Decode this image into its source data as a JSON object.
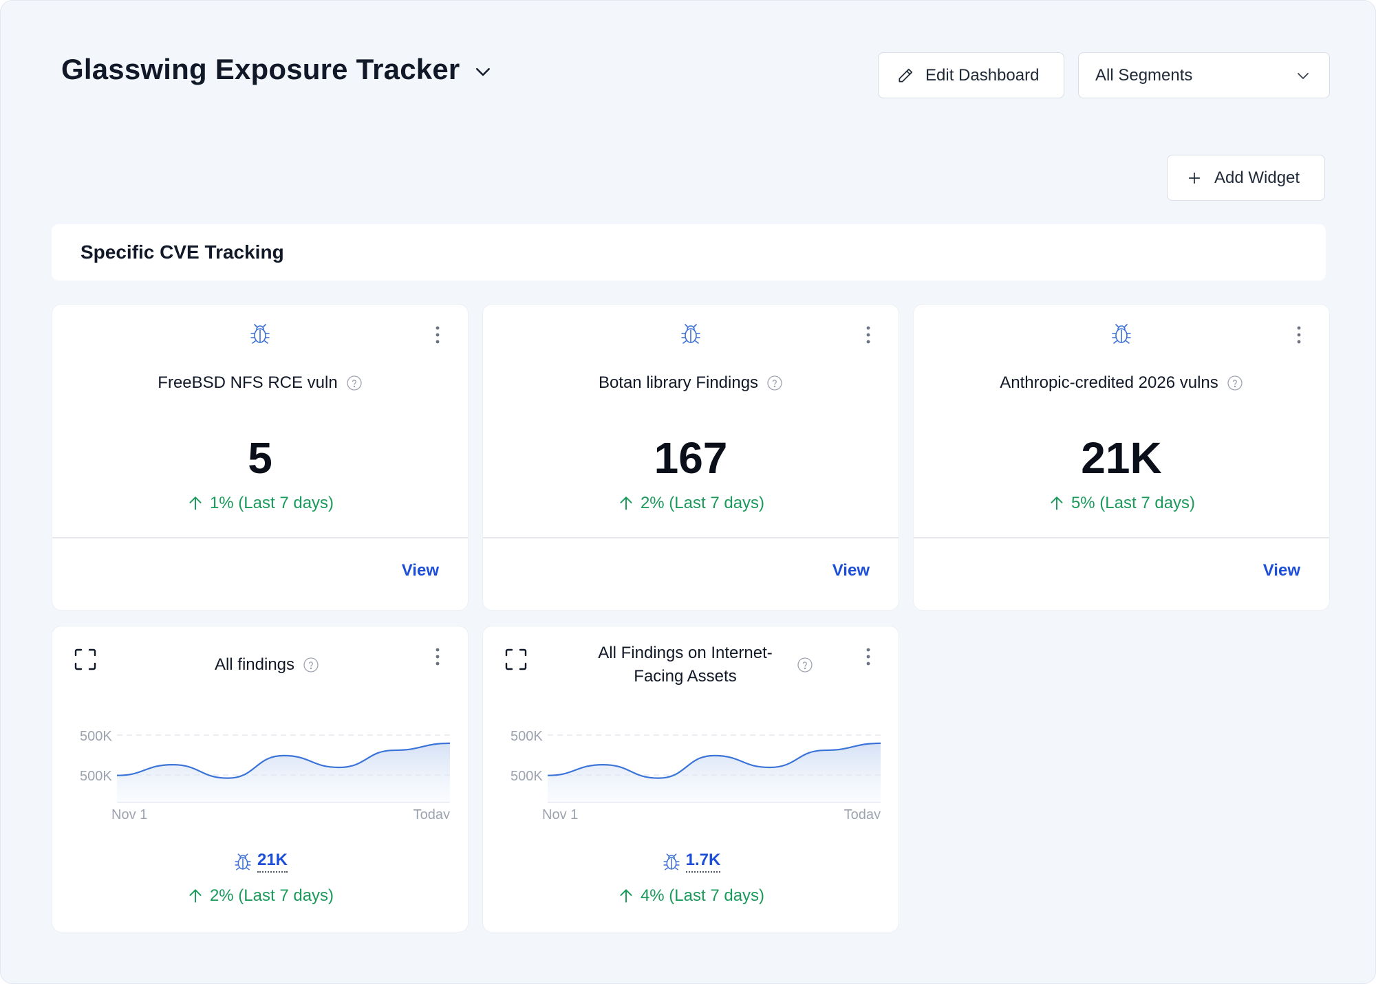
{
  "header": {
    "title": "Glasswing Exposure Tracker",
    "edit_label": "Edit Dashboard",
    "segment_label": "All Segments",
    "add_widget_label": "Add Widget"
  },
  "section": {
    "title": "Specific CVE Tracking"
  },
  "kpis": [
    {
      "label": "FreeBSD NFS RCE vuln",
      "value": "5",
      "trend": "1% (Last 7 days)",
      "view": "View"
    },
    {
      "label": "Botan library Findings",
      "value": "167",
      "trend": "2% (Last 7 days)",
      "view": "View"
    },
    {
      "label": "Anthropic-credited 2026 vulns",
      "value": "21K",
      "trend": "5% (Last 7 days)",
      "view": "View"
    }
  ],
  "charts": [
    {
      "title": "All findings",
      "total": "21K",
      "trend": "2% (Last 7 days)"
    },
    {
      "title": "All Findings on Internet-Facing Assets",
      "total": "1.7K",
      "trend": "4% (Last 7 days)"
    }
  ],
  "colors": {
    "accent": "#1d4ed8",
    "positive": "#1a9a5b",
    "line": "#3b74d9",
    "icon": "#3b6fd4"
  },
  "chart_data": [
    {
      "type": "area",
      "title": "All findings",
      "y_tick_labels": [
        "500K",
        "500K"
      ],
      "x_tick_labels": [
        "Nov 1",
        "Today"
      ],
      "grid": true,
      "series": [
        {
          "values": [
            0.35,
            0.55,
            0.3,
            0.72,
            0.5,
            0.82,
            0.95
          ]
        }
      ]
    },
    {
      "type": "area",
      "title": "All Findings on Internet-Facing Assets",
      "y_tick_labels": [
        "500K",
        "500K"
      ],
      "x_tick_labels": [
        "Nov 1",
        "Today"
      ],
      "grid": true,
      "series": [
        {
          "values": [
            0.35,
            0.55,
            0.3,
            0.72,
            0.5,
            0.82,
            0.95
          ]
        }
      ]
    }
  ]
}
